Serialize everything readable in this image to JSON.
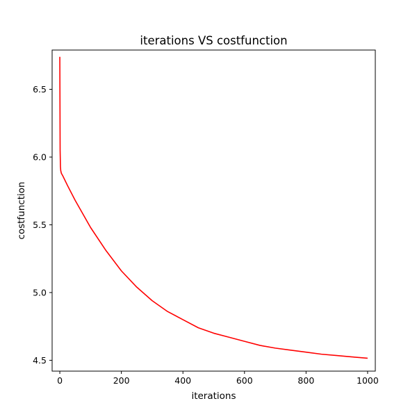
{
  "chart_data": {
    "type": "line",
    "title": "iterations VS costfunction",
    "xlabel": "iterations",
    "ylabel": "costfunction",
    "xlim": [
      -25,
      1025
    ],
    "ylim": [
      4.42,
      6.79
    ],
    "xticks": [
      0,
      200,
      400,
      600,
      800,
      1000
    ],
    "xtick_labels": [
      "0",
      "200",
      "400",
      "600",
      "800",
      "1000"
    ],
    "yticks": [
      4.5,
      5.0,
      5.5,
      6.0,
      6.5
    ],
    "ytick_labels": [
      "4.5",
      "5.0",
      "5.5",
      "6.0",
      "6.5"
    ],
    "grid": false,
    "series": [
      {
        "color": "#ff0000",
        "x": [
          0,
          1,
          2,
          3,
          5,
          10,
          25,
          50,
          75,
          100,
          150,
          200,
          250,
          300,
          350,
          400,
          450,
          500,
          550,
          600,
          650,
          700,
          750,
          800,
          850,
          900,
          950,
          1000
        ],
        "y": [
          6.74,
          6.05,
          5.93,
          5.9,
          5.88,
          5.86,
          5.79,
          5.68,
          5.58,
          5.48,
          5.31,
          5.16,
          5.04,
          4.94,
          4.86,
          4.8,
          4.74,
          4.7,
          4.67,
          4.64,
          4.61,
          4.59,
          4.575,
          4.56,
          4.545,
          4.535,
          4.525,
          4.515
        ]
      }
    ]
  }
}
